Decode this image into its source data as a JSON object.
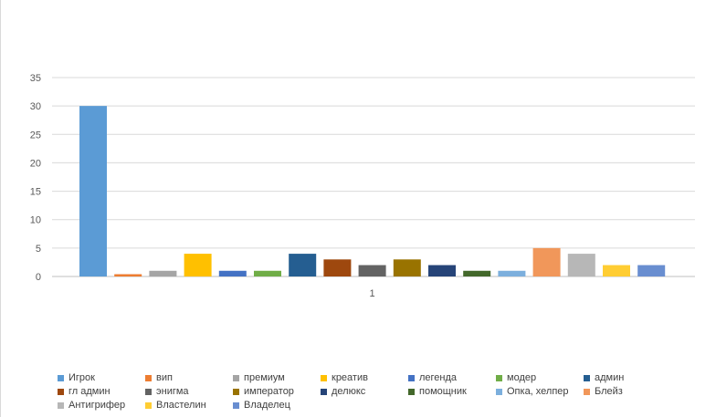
{
  "chart_data": {
    "type": "bar",
    "categories": [
      "1"
    ],
    "ylim": [
      0,
      35
    ],
    "yticks": [
      0,
      5,
      10,
      15,
      20,
      25,
      30,
      35
    ],
    "grid": true,
    "legend_position": "bottom",
    "series": [
      {
        "name": "Игрок",
        "values": [
          30
        ],
        "color": "#5b9bd5"
      },
      {
        "name": "вип",
        "values": [
          0.4
        ],
        "color": "#ed7d31"
      },
      {
        "name": "премиум",
        "values": [
          1
        ],
        "color": "#a5a5a5"
      },
      {
        "name": "креатив",
        "values": [
          4
        ],
        "color": "#ffc000"
      },
      {
        "name": "легенда",
        "values": [
          1
        ],
        "color": "#4472c4"
      },
      {
        "name": "модер",
        "values": [
          1
        ],
        "color": "#70ad47"
      },
      {
        "name": "админ",
        "values": [
          4
        ],
        "color": "#255e91"
      },
      {
        "name": "гл админ",
        "values": [
          3
        ],
        "color": "#9e480e"
      },
      {
        "name": "энигма",
        "values": [
          2
        ],
        "color": "#636363"
      },
      {
        "name": "император",
        "values": [
          3
        ],
        "color": "#997300"
      },
      {
        "name": "делюкс",
        "values": [
          2
        ],
        "color": "#264478"
      },
      {
        "name": "помощник",
        "values": [
          1
        ],
        "color": "#43682b"
      },
      {
        "name": "Опка, хелпер",
        "values": [
          1
        ],
        "color": "#7cafdd"
      },
      {
        "name": "Блейз",
        "values": [
          5
        ],
        "color": "#f1975a"
      },
      {
        "name": "Антигрифер",
        "values": [
          4
        ],
        "color": "#b7b7b7"
      },
      {
        "name": "Властелин",
        "values": [
          2
        ],
        "color": "#ffcd33"
      },
      {
        "name": "Владелец",
        "values": [
          2
        ],
        "color": "#698ed0"
      }
    ]
  }
}
